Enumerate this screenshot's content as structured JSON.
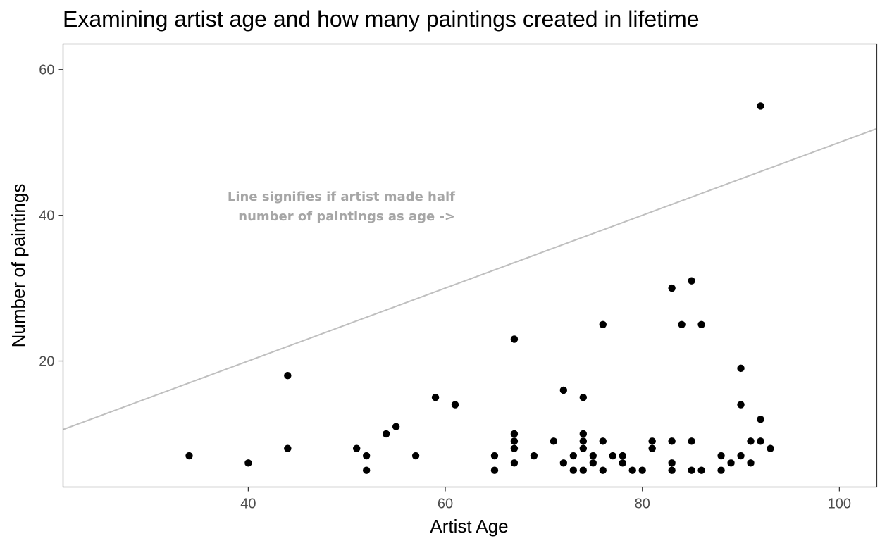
{
  "chart_data": {
    "type": "scatter",
    "title": "Examining artist age and how many paintings created in lifetime",
    "xlabel": "Artist Age",
    "ylabel": "Number of paintings",
    "xlim": [
      21.2,
      103.8
    ],
    "ylim": [
      2.7,
      63.5
    ],
    "xticks": [
      40,
      60,
      80,
      100
    ],
    "yticks": [
      20,
      40,
      60
    ],
    "grid": false,
    "reference_line": {
      "slope": 0.5,
      "intercept": 0,
      "color": "#bfbfbf"
    },
    "annotation": {
      "lines": [
        "Line signifies if artist made half",
        "number of paintings as age ->"
      ],
      "x": 61,
      "y": 39.3,
      "color": "#a6a6a6"
    },
    "point_color": "#000000",
    "points": [
      {
        "x": 34,
        "y": 7
      },
      {
        "x": 40,
        "y": 6
      },
      {
        "x": 44,
        "y": 18
      },
      {
        "x": 44,
        "y": 8
      },
      {
        "x": 51,
        "y": 8
      },
      {
        "x": 52,
        "y": 7
      },
      {
        "x": 52,
        "y": 5
      },
      {
        "x": 54,
        "y": 10
      },
      {
        "x": 55,
        "y": 11
      },
      {
        "x": 57,
        "y": 7
      },
      {
        "x": 59,
        "y": 15
      },
      {
        "x": 61,
        "y": 14
      },
      {
        "x": 65,
        "y": 7
      },
      {
        "x": 65,
        "y": 5
      },
      {
        "x": 67,
        "y": 23
      },
      {
        "x": 67,
        "y": 10
      },
      {
        "x": 67,
        "y": 9
      },
      {
        "x": 67,
        "y": 8
      },
      {
        "x": 67,
        "y": 6
      },
      {
        "x": 69,
        "y": 7
      },
      {
        "x": 71,
        "y": 9
      },
      {
        "x": 72,
        "y": 16
      },
      {
        "x": 72,
        "y": 6
      },
      {
        "x": 73,
        "y": 7
      },
      {
        "x": 73,
        "y": 5
      },
      {
        "x": 74,
        "y": 15
      },
      {
        "x": 74,
        "y": 10
      },
      {
        "x": 74,
        "y": 9
      },
      {
        "x": 74,
        "y": 8
      },
      {
        "x": 74,
        "y": 5
      },
      {
        "x": 75,
        "y": 7
      },
      {
        "x": 75,
        "y": 6
      },
      {
        "x": 76,
        "y": 25
      },
      {
        "x": 76,
        "y": 9
      },
      {
        "x": 76,
        "y": 5
      },
      {
        "x": 77,
        "y": 7
      },
      {
        "x": 78,
        "y": 7
      },
      {
        "x": 78,
        "y": 6
      },
      {
        "x": 79,
        "y": 5
      },
      {
        "x": 80,
        "y": 5
      },
      {
        "x": 81,
        "y": 9
      },
      {
        "x": 81,
        "y": 8
      },
      {
        "x": 83,
        "y": 30
      },
      {
        "x": 83,
        "y": 9
      },
      {
        "x": 83,
        "y": 6
      },
      {
        "x": 83,
        "y": 5
      },
      {
        "x": 84,
        "y": 25
      },
      {
        "x": 85,
        "y": 31
      },
      {
        "x": 85,
        "y": 9
      },
      {
        "x": 85,
        "y": 5
      },
      {
        "x": 86,
        "y": 25
      },
      {
        "x": 86,
        "y": 5
      },
      {
        "x": 88,
        "y": 7
      },
      {
        "x": 88,
        "y": 5
      },
      {
        "x": 89,
        "y": 6
      },
      {
        "x": 90,
        "y": 19
      },
      {
        "x": 90,
        "y": 14
      },
      {
        "x": 90,
        "y": 7
      },
      {
        "x": 91,
        "y": 9
      },
      {
        "x": 91,
        "y": 6
      },
      {
        "x": 92,
        "y": 55
      },
      {
        "x": 92,
        "y": 12
      },
      {
        "x": 92,
        "y": 9
      },
      {
        "x": 93,
        "y": 8
      }
    ]
  }
}
